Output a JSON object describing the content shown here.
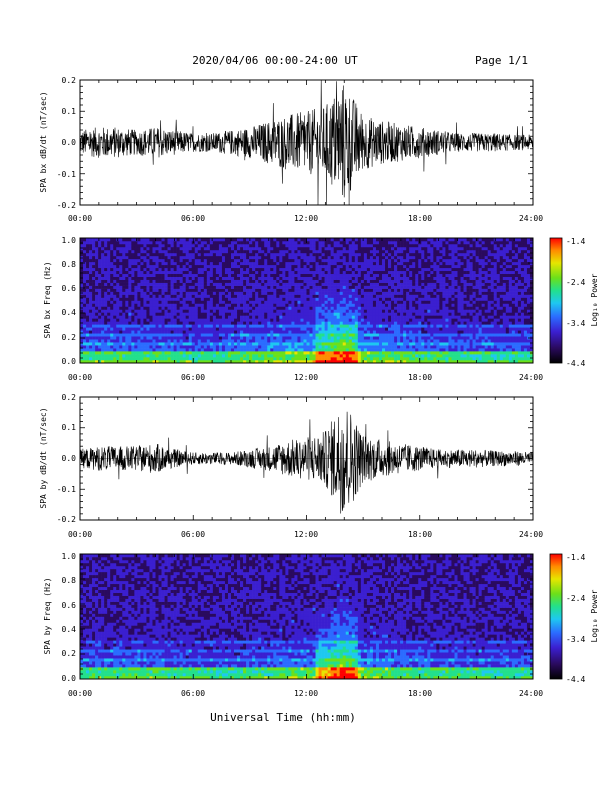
{
  "header": {
    "title": "2020/04/06  00:00-24:00 UT",
    "page": "Page 1/1"
  },
  "xlabel": "Universal Time (hh:mm)",
  "colors": {
    "trace": "#000000",
    "colormap": [
      "#000000",
      "#2a0a5e",
      "#3b1fd0",
      "#2b6cff",
      "#1ec8f0",
      "#22e08c",
      "#6be01a",
      "#e6e600",
      "#ff8c00",
      "#ff0000"
    ]
  },
  "chart_data": [
    {
      "type": "line",
      "ylabel": "SPA bx dB/dt (nT/sec)",
      "xticks": [
        "00:00",
        "06:00",
        "12:00",
        "18:00",
        "24:00"
      ],
      "yticks": [
        "0.2",
        "0.1",
        "0.0",
        "-0.1",
        "-0.2"
      ],
      "xlim": [
        0,
        24
      ],
      "ylim": [
        -0.2,
        0.2
      ],
      "series": [
        {
          "x": [
            0,
            1,
            2,
            3,
            4,
            5,
            6,
            7,
            8,
            9,
            10,
            11,
            12,
            13,
            14,
            15,
            16,
            17,
            18,
            19,
            20,
            21,
            22,
            23,
            24
          ],
          "envelope": [
            0.04,
            0.05,
            0.05,
            0.04,
            0.05,
            0.04,
            0.03,
            0.03,
            0.04,
            0.05,
            0.07,
            0.09,
            0.1,
            0.12,
            0.2,
            0.09,
            0.07,
            0.06,
            0.05,
            0.04,
            0.03,
            0.03,
            0.03,
            0.025,
            0.025
          ]
        }
      ]
    },
    {
      "type": "heatmap",
      "ylabel": "SPA bx Freq (Hz)",
      "xticks": [
        "00:00",
        "06:00",
        "12:00",
        "18:00",
        "24:00"
      ],
      "yticks": [
        "1.0",
        "0.8",
        "0.6",
        "0.4",
        "0.2",
        "0.0"
      ],
      "xlim": [
        0,
        24
      ],
      "ylim": [
        0,
        1
      ],
      "colorbar": {
        "label": "Log₁₀ Power",
        "ticks": [
          "-1.4",
          "-2.4",
          "-3.4",
          "-4.4"
        ],
        "range": [
          -4.4,
          -1.4
        ]
      }
    },
    {
      "type": "line",
      "ylabel": "SPA by dB/dt (nT/sec)",
      "xticks": [
        "00:00",
        "06:00",
        "12:00",
        "18:00",
        "24:00"
      ],
      "yticks": [
        "0.2",
        "0.1",
        "0.0",
        "-0.1",
        "-0.2"
      ],
      "xlim": [
        0,
        24
      ],
      "ylim": [
        -0.2,
        0.2
      ],
      "series": [
        {
          "x": [
            0,
            1,
            2,
            3,
            4,
            5,
            6,
            7,
            8,
            9,
            10,
            11,
            12,
            13,
            14,
            15,
            16,
            17,
            18,
            19,
            20,
            21,
            22,
            23,
            24
          ],
          "envelope": [
            0.03,
            0.04,
            0.04,
            0.04,
            0.05,
            0.03,
            0.02,
            0.02,
            0.02,
            0.03,
            0.04,
            0.06,
            0.07,
            0.09,
            0.2,
            0.08,
            0.06,
            0.05,
            0.04,
            0.03,
            0.03,
            0.03,
            0.025,
            0.025,
            0.02
          ]
        }
      ]
    },
    {
      "type": "heatmap",
      "ylabel": "SPA by Freq (Hz)",
      "xticks": [
        "00:00",
        "06:00",
        "12:00",
        "18:00",
        "24:00"
      ],
      "yticks": [
        "1.0",
        "0.8",
        "0.6",
        "0.4",
        "0.2",
        "0.0"
      ],
      "xlim": [
        0,
        24
      ],
      "ylim": [
        0,
        1
      ],
      "colorbar": {
        "label": "Log₁₀ Power",
        "ticks": [
          "-1.4",
          "-2.4",
          "-3.4",
          "-4.4"
        ],
        "range": [
          -4.4,
          -1.4
        ]
      }
    }
  ]
}
